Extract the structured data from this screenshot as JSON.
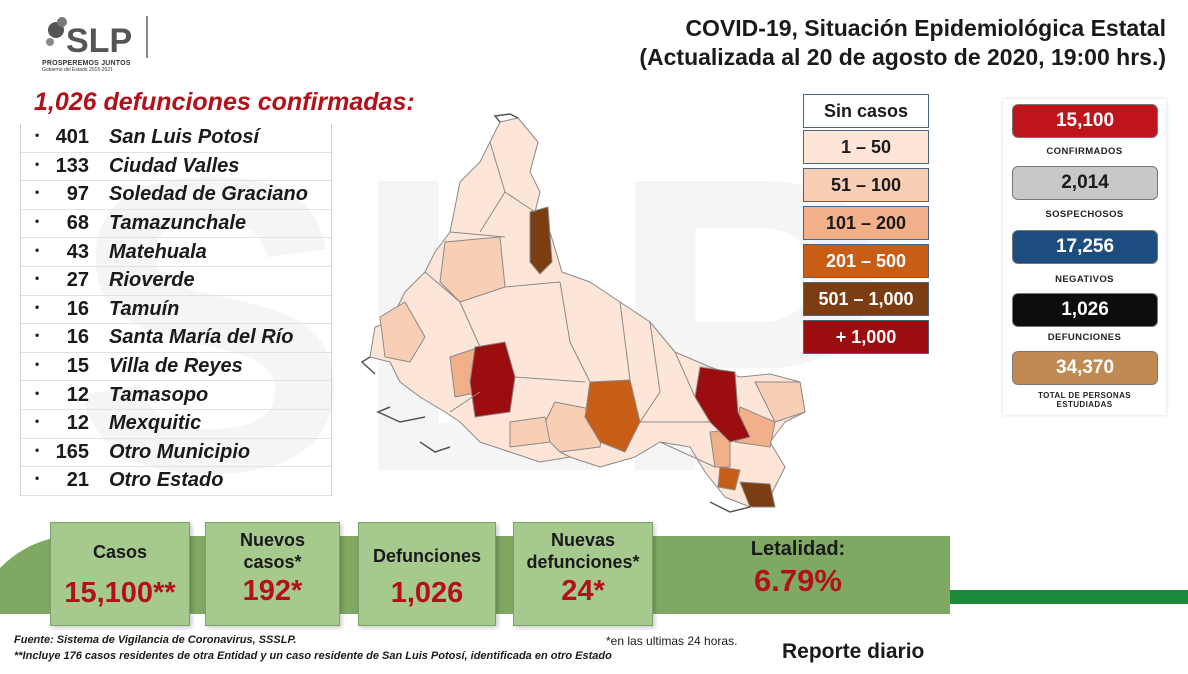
{
  "logo": {
    "initials": "SLP",
    "tagline": "PROSPEREMOS JUNTOS",
    "subtitle": "Gobierno del Estado 2015-2021"
  },
  "title": {
    "line1": "COVID-19, Situación Epidemiológica Estatal",
    "line2": "(Actualizada al 20 de agosto de 2020, 19:00 hrs.)"
  },
  "deaths": {
    "heading": "1,026 defunciones confirmadas:",
    "rows": [
      {
        "count": "401",
        "name": "San Luis Potosí"
      },
      {
        "count": "133",
        "name": "Ciudad Valles"
      },
      {
        "count": "97",
        "name": "Soledad de Graciano"
      },
      {
        "count": "68",
        "name": "Tamazunchale"
      },
      {
        "count": "43",
        "name": "Matehuala"
      },
      {
        "count": "27",
        "name": "Rioverde"
      },
      {
        "count": "16",
        "name": "Tamuín"
      },
      {
        "count": "16",
        "name": "Santa María del Río"
      },
      {
        "count": "15",
        "name": "Villa de Reyes"
      },
      {
        "count": "12",
        "name": "Tamasopo"
      },
      {
        "count": "12",
        "name": "Mexquitic"
      },
      {
        "count": "165",
        "name": "Otro Municipio"
      },
      {
        "count": "21",
        "name": "Otro Estado"
      }
    ]
  },
  "legend": [
    {
      "label": "Sin casos",
      "color": "#ffffff",
      "text_color": "#1a1a1a"
    },
    {
      "label": "1 – 50",
      "color": "#fde6d8",
      "text_color": "#1a1a1a"
    },
    {
      "label": "51 – 100",
      "color": "#f8cfb4",
      "text_color": "#1a1a1a"
    },
    {
      "label": "101 – 200",
      "color": "#f2b08a",
      "text_color": "#1a1a1a"
    },
    {
      "label": "201 – 500",
      "color": "#c85e16",
      "text_color": "#ffffff"
    },
    {
      "label": "501 – 1,000",
      "color": "#7a3e12",
      "text_color": "#ffffff"
    },
    {
      "label": "+ 1,000",
      "color": "#9c0d0f",
      "text_color": "#ffffff"
    }
  ],
  "stats": [
    {
      "value": "15,100",
      "label": "CONFIRMADOS",
      "color": "#c0141c",
      "text_color": "#ffffff"
    },
    {
      "value": "2,014",
      "label": "SOSPECHOSOS",
      "color": "#c8c8c8",
      "text_color": "#1a1a1a"
    },
    {
      "value": "17,256",
      "label": "NEGATIVOS",
      "color": "#1d4d7f",
      "text_color": "#ffffff"
    },
    {
      "value": "1,026",
      "label": "DEFUNCIONES",
      "color": "#0d0d0d",
      "text_color": "#ffffff"
    },
    {
      "value": "34,370",
      "label_line1": "TOTAL DE PERSONAS",
      "label_line2": "ESTUDIADAS",
      "color": "#c08a52",
      "text_color": "#ffffff"
    }
  ],
  "cards": {
    "casos": {
      "label": "Casos",
      "value": "15,100**"
    },
    "nuevos_casos": {
      "label_line1": "Nuevos",
      "label_line2": "casos*",
      "value": "192*"
    },
    "defunciones": {
      "label": "Defunciones",
      "value": "1,026"
    },
    "nuevas_defunciones": {
      "label_line1": "Nuevas",
      "label_line2": "defunciones*",
      "value": "24*"
    },
    "letalidad": {
      "label": "Letalidad:",
      "value": "6.79%"
    }
  },
  "footer": {
    "source": "Fuente: Sistema de Vigilancia de Coronavirus, SSSLP.",
    "note": "**Incluye 176 casos residentes de otra Entidad y un caso residente de San Luis Potosí, identificada en otro Estado",
    "asterisk_note": "*en las ultimas 24 horas.",
    "report": "Reporte diario"
  },
  "colors": {
    "accent_red": "#b3101a",
    "band_green": "#7fa863",
    "card_green": "#a6c98e",
    "stripe_green": "#1b8a3a"
  }
}
